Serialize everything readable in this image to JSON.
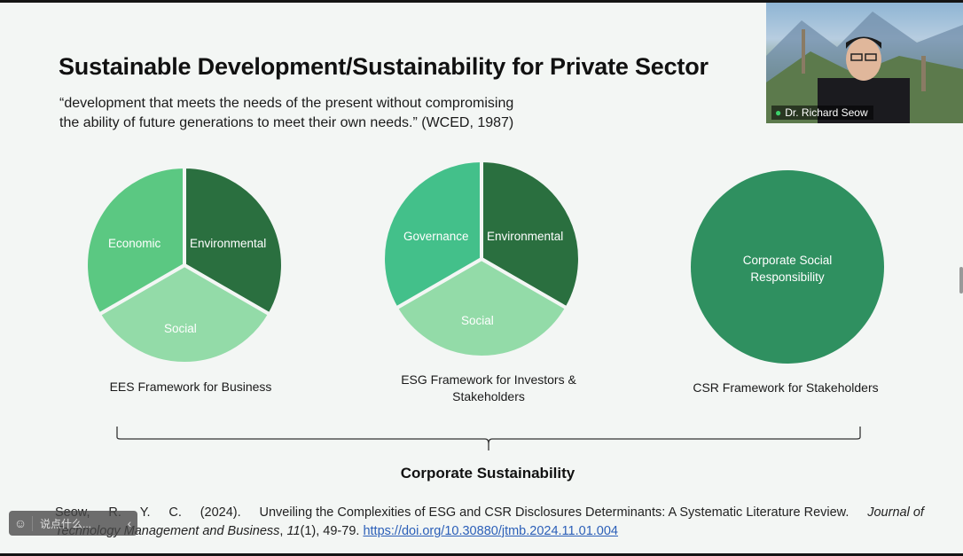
{
  "slide": {
    "title": "Sustainable Development/Sustainability for Private Sector",
    "quote_line1": "“development that meets the needs of the present without compromising",
    "quote_line2": "the ability of future generations to meet their own needs.” (WCED, 1987)",
    "frameworks": [
      {
        "segments": [
          "Economic",
          "Environmental",
          "Social"
        ],
        "caption_line1": "EES Framework for Business",
        "caption_line2": ""
      },
      {
        "segments": [
          "Governance",
          "Environmental",
          "Social"
        ],
        "caption_line1": "ESG Framework for Investors &",
        "caption_line2": "Stakeholders"
      },
      {
        "circle_line1": "Corporate Social",
        "circle_line2": "Responsibility",
        "caption_line1": "CSR Framework for Stakeholders"
      }
    ],
    "bracket_label": "Corporate Sustainability",
    "reference": {
      "part1_w1": "Seow,",
      "part1_w2": "R.",
      "part1_w3": "Y.",
      "part1_w4": "C.",
      "part1_w5": "(2024).",
      "part1_w6": "Unveiling the Complexities of ESG and CSR Disclosures Determinants: A Systematic Literature Review.",
      "journal_a": "Journal of",
      "journal_b": "Technology Management and Business",
      "volume_comma": ",",
      "volume": "11",
      "issue_pages": "(1), 49-79.",
      "doi": "https://doi.org/10.30880/jtmb.2024.11.01.004"
    },
    "colors": {
      "economic": "#5bc882",
      "environmental": "#2a6f3f",
      "social": "#93dba8",
      "governance": "#43c08a",
      "csr": "#2f9060"
    }
  },
  "video": {
    "participant_name": "Dr. Richard Seow",
    "mic_icon": "microphone-icon"
  },
  "comment_box": {
    "emoji_icon": "smiley-icon",
    "placeholder": "说点什么...",
    "arrow_icon": "chevron-left-icon"
  }
}
